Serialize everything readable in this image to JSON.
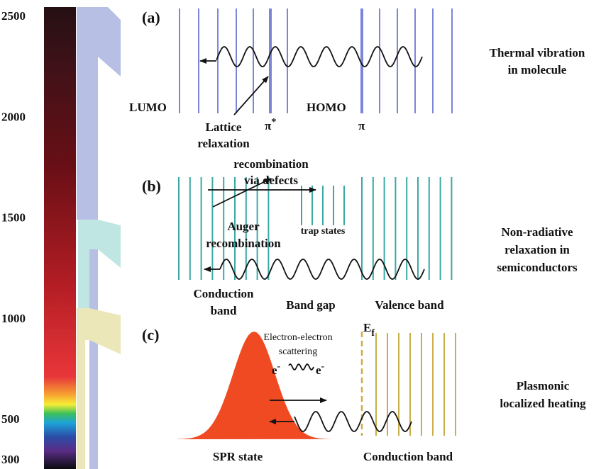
{
  "scale": {
    "lim": [
      300,
      2500
    ],
    "ticks": [
      2500,
      2000,
      1500,
      1000,
      500,
      300
    ]
  },
  "panel_a": {
    "label": "(a)",
    "lumo": "LUMO",
    "homo": "HOMO",
    "pi_star": "π",
    "pi_star_sup": "*",
    "pi": "π",
    "lattice_relaxation": [
      "Lattice",
      "relaxation"
    ],
    "caption": [
      "Thermal vibration",
      "in molecule"
    ]
  },
  "panel_b": {
    "label": "(b)",
    "recombination_defects": [
      "recombination",
      "via defects"
    ],
    "trap_states": "trap states",
    "auger": [
      "Auger",
      "recombination"
    ],
    "conduction_band": [
      "Conduction",
      "band"
    ],
    "band_gap": "Band gap",
    "valence_band": "Valence band",
    "caption": [
      "Non-radiative",
      "relaxation in",
      "semiconductors"
    ]
  },
  "panel_c": {
    "label": "(c)",
    "ef": "E",
    "ef_sub": "f",
    "scattering": [
      "Electron-electron",
      "scattering"
    ],
    "e_left": "e",
    "e_left_sup": "-",
    "e_right": "e",
    "e_right_sup": "-",
    "spr_state": "SPR state",
    "conduction_band": "Conduction band",
    "caption": [
      "Plasmonic",
      "localized heating"
    ]
  }
}
